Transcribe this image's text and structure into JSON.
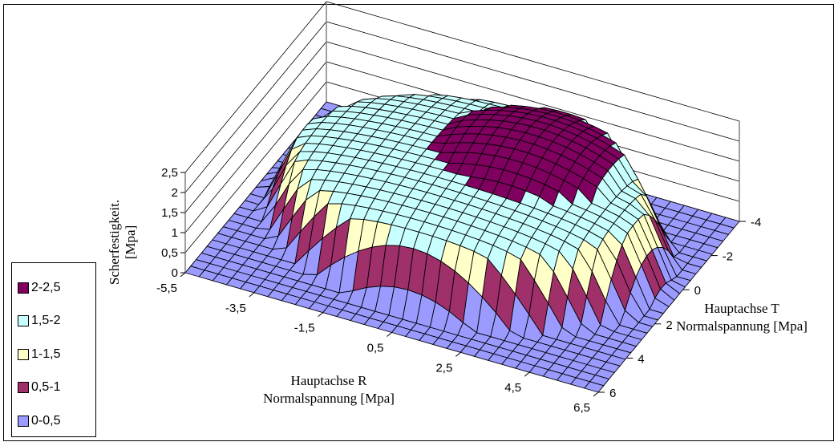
{
  "chart_data": {
    "type": "surface3d",
    "title": "",
    "xlabel": [
      "Hauptachse R",
      "Normalspannung [Mpa]"
    ],
    "ylabel": [
      "Hauptachse T",
      "Normalspannung [Mpa]"
    ],
    "zlabel": [
      "Scherfestigkeit.",
      "[Mpa]"
    ],
    "x_ticks": [
      "-5,5",
      "-3,5",
      "-1,5",
      "0,5",
      "2,5",
      "4,5",
      "6,5"
    ],
    "y_ticks": [
      "-4",
      "-2",
      "0",
      "2",
      "4",
      "6"
    ],
    "z_ticks": [
      "0",
      "0,5",
      "1",
      "1,5",
      "2",
      "2,5"
    ],
    "xlim": [
      -5.5,
      6.5
    ],
    "ylim": [
      -4,
      6
    ],
    "zlim": [
      0,
      2.5
    ],
    "grid": true,
    "legend_position": "bottom-left",
    "series": [
      {
        "name": "2-2,5",
        "range": [
          2,
          2.5
        ],
        "color": "#800060"
      },
      {
        "name": "1,5-2",
        "range": [
          1.5,
          2
        ],
        "color": "#c8ffff"
      },
      {
        "name": "1-1,5",
        "range": [
          1,
          1.5
        ],
        "color": "#ffffc8"
      },
      {
        "name": "0,5-1",
        "range": [
          0.5,
          1
        ],
        "color": "#a0306a"
      },
      {
        "name": "0-0,5",
        "range": [
          0,
          0.5
        ],
        "color": "#9a9aff"
      }
    ],
    "legend_order": [
      "2-2,5",
      "1,5-2",
      "1-1,5",
      "0,5-1",
      "0-0,5"
    ]
  }
}
